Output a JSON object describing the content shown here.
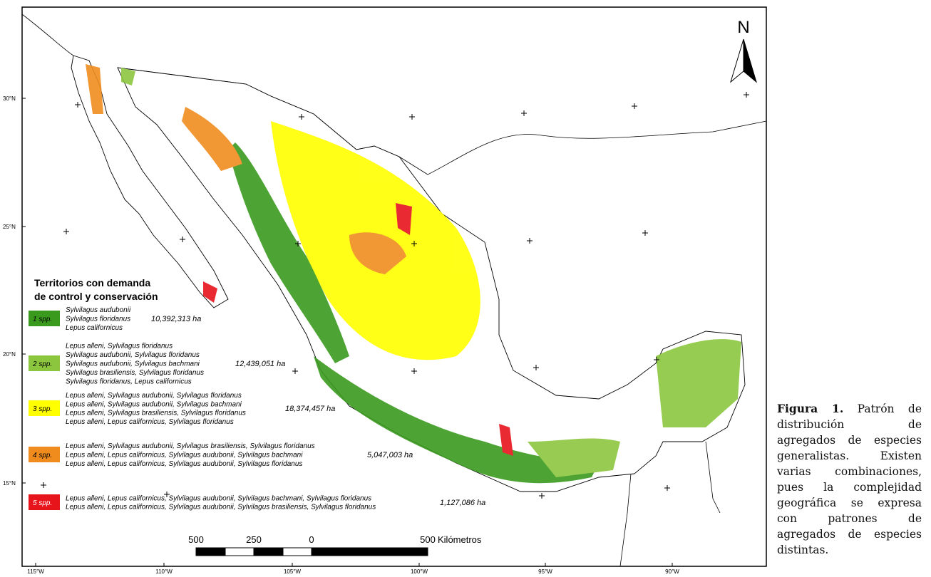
{
  "map": {
    "north": "N",
    "lat_labels": [
      "30°N",
      "25°N",
      "20°N",
      "15°N"
    ],
    "lon_labels": [
      "115°W",
      "110°W",
      "105°W",
      "100°W",
      "95°W",
      "90°W"
    ],
    "legend": {
      "title_lines": [
        "Territorios con demanda",
        "de control y conservación"
      ],
      "items": [
        {
          "label": "1 spp.",
          "color": "#3a9a1e",
          "species": [
            "Sylvilagus audubonii",
            "Sylvilagus floridanus",
            "Lepus californicus"
          ],
          "area": "10,392,313 ha"
        },
        {
          "label": "2 spp.",
          "color": "#8cc63f",
          "species": [
            "Lepus alleni, Sylvilagus floridanus",
            "Sylvilagus audubonii, Sylvilagus floridanus",
            "Sylvilagus audubonii, Sylvilagus bachmani",
            "Sylvilagus brasiliensis, Sylvilagus floridanus",
            "Sylvilagus floridanus, Lepus californicus"
          ],
          "area": "12,439,051 ha"
        },
        {
          "label": "3 spp.",
          "color": "#ffff00",
          "species": [
            "Lepus alleni, Sylvilagus audubonii, Sylvilagus floridanus",
            "Lepus alleni, Sylvilagus audubonii, Sylvilagus bachmani",
            "Lepus alleni, Sylvilagus brasiliensis, Sylvilagus floridanus",
            "Lepus alleni, Lepus californicus, Sylvilagus floridanus"
          ],
          "area": "18,374,457 ha"
        },
        {
          "label": "4 spp.",
          "color": "#f08c1e",
          "species": [
            "Lepus alleni, Sylvilagus audubonii, Sylvilagus brasiliensis, Sylvilagus floridanus",
            "Lepus alleni,  Lepus californicus, Sylvilagus audubonii, Sylvilagus bachmani",
            "Lepus alleni,  Lepus californicus, Sylvilagus audubonii, Sylvilagus floridanus"
          ],
          "area": "5,047,003 ha"
        },
        {
          "label": "5 spp.",
          "color": "#e8141c",
          "species": [
            "Lepus alleni,  Lepus californicus, Sylvilagus audubonii, Sylvilagus bachmani, Sylvilagus floridanus",
            "Lepus alleni,  Lepus californicus, Sylvilagus audubonii, Sylvilagus brasiliensis, Sylvilagus floridanus"
          ],
          "area": "1,127,086 ha"
        }
      ]
    },
    "scale": {
      "labels": [
        "500",
        "250",
        "0",
        "500"
      ],
      "unit": "Kilómetros"
    },
    "caption": {
      "label": "Figura 1.",
      "text": "Patrón de distribución de agregados de especies generalistas. Existen varias combinaciones, pues la complejidad geográfica se expresa con patrones de agregados de especies distintas."
    }
  }
}
